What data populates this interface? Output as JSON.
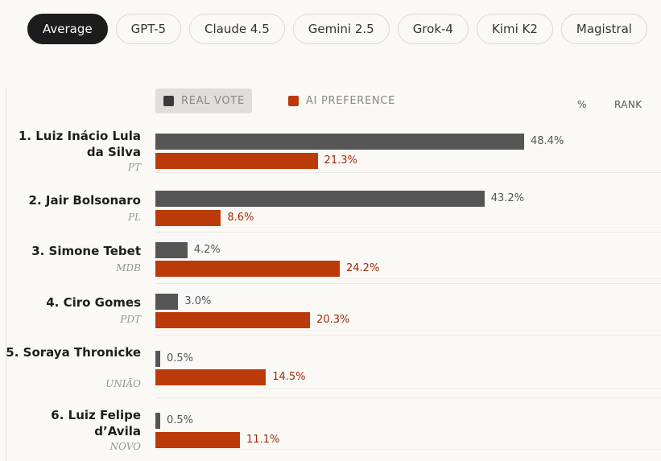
{
  "tabs": [
    "Average",
    "GPT-5",
    "Claude 4.5",
    "Gemini 2.5",
    "Grok-4",
    "Kimi K2",
    "Magistral"
  ],
  "active_tab": "Average",
  "legend": {
    "real": "REAL VOTE",
    "ai": "AI PREFERENCE"
  },
  "columns": {
    "pct": "%",
    "rank": "RANK"
  },
  "colors": {
    "real": "#555555",
    "ai": "#bb3a0a",
    "active_tab": "#1c1c1c"
  },
  "chart_data": {
    "type": "bar",
    "orientation": "horizontal",
    "categories": [
      "1.  Luiz Inácio Lula da Silva",
      "2.  Jair Bolsonaro",
      "3.  Simone Tebet",
      "4.  Ciro Gomes",
      "5.  Soraya Thronicke",
      "6.  Luiz Felipe d’Avila"
    ],
    "parties": [
      "PT",
      "PL",
      "MDB",
      "PDT",
      "UNIÃO",
      "NOVO"
    ],
    "series": [
      {
        "name": "REAL VOTE",
        "values": [
          48.4,
          43.2,
          4.2,
          3.0,
          0.5,
          0.5
        ],
        "labels": [
          "48.4%",
          "43.2%",
          "4.2%",
          "3.0%",
          "0.5%",
          "0.5%"
        ]
      },
      {
        "name": "AI PREFERENCE",
        "values": [
          21.3,
          8.6,
          24.2,
          20.3,
          14.5,
          11.1
        ],
        "labels": [
          "21.3%",
          "8.6%",
          "24.2%",
          "20.3%",
          "14.5%",
          "11.1%"
        ]
      }
    ],
    "xlim": [
      0,
      50
    ]
  }
}
